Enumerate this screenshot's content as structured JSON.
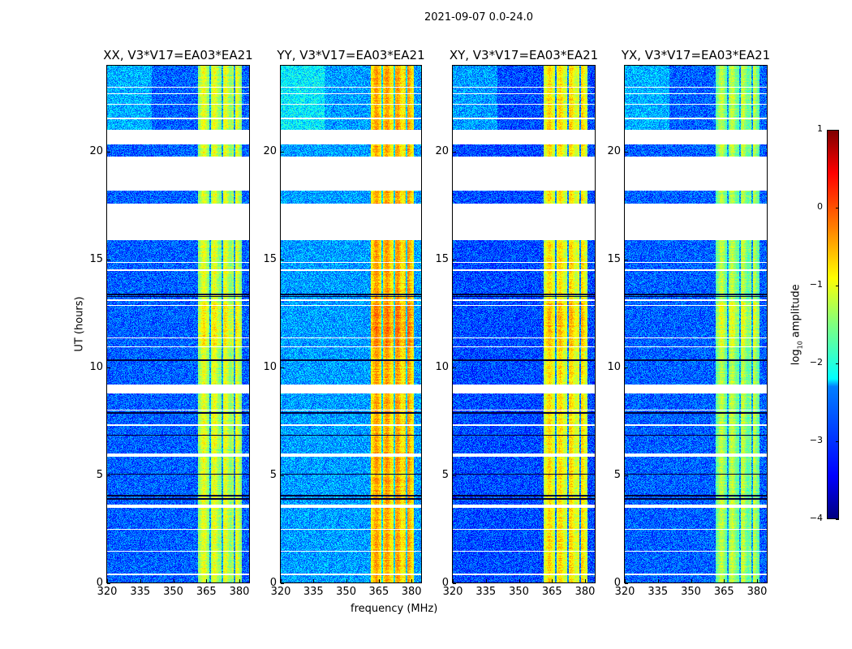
{
  "chart_data": {
    "type": "heatmap",
    "title": "2021-09-07 0.0-24.0",
    "xlabel": "frequency (MHz)",
    "ylabel": "UT (hours)",
    "xlim": [
      320,
      384.4
    ],
    "ylim": [
      0,
      24
    ],
    "xticks": [
      "320",
      "335",
      "350",
      "365",
      "380"
    ],
    "xtick_values": [
      320,
      335,
      350,
      365,
      380
    ],
    "yticks": [
      "0",
      "5",
      "10",
      "15",
      "20"
    ],
    "ytick_values": [
      0,
      5,
      10,
      15,
      20
    ],
    "colorbar": {
      "label": "log",
      "label_sub": "10",
      "label_rest": " amplitude",
      "colormap": "jet",
      "range": [
        -4,
        1
      ],
      "ticks": [
        "1",
        "0",
        "−1",
        "−2",
        "−3",
        "−4"
      ],
      "tick_values": [
        1,
        0,
        -1,
        -2,
        -3,
        -4
      ]
    },
    "band_MHz": [
      361,
      381
    ],
    "band_dark_channels_MHz": [
      366.5,
      372,
      377.5
    ],
    "flagged_gaps_hours": [
      [
        23.0,
        23.05
      ],
      [
        22.7,
        22.75
      ],
      [
        22.2,
        22.25
      ],
      [
        21.55,
        21.6
      ],
      [
        20.35,
        21.05
      ],
      [
        18.2,
        19.8
      ],
      [
        15.9,
        17.6
      ],
      [
        14.85,
        14.9
      ],
      [
        14.5,
        14.55
      ],
      [
        13.1,
        13.15
      ],
      [
        12.85,
        12.9
      ],
      [
        11.35,
        11.4
      ],
      [
        10.95,
        11.0
      ],
      [
        8.8,
        9.2
      ],
      [
        8.0,
        8.05
      ],
      [
        7.3,
        7.35
      ],
      [
        5.85,
        6.0
      ],
      [
        3.5,
        3.65
      ],
      [
        2.45,
        2.5
      ],
      [
        1.45,
        1.5
      ],
      [
        0.35,
        0.42
      ]
    ],
    "dark_lines_hours": [
      13.3,
      13.4,
      10.35,
      7.9,
      6.85,
      5.05,
      4.05,
      3.9
    ],
    "panels": [
      {
        "title": "XX, V3*V17=EA03*EA21",
        "background_log_amp": -2.9,
        "band_log_amp": -1.2
      },
      {
        "title": "YY, V3*V17=EA03*EA21",
        "background_log_amp": -2.6,
        "band_log_amp": -0.6
      },
      {
        "title": "XY, V3*V17=EA03*EA21",
        "background_log_amp": -3.0,
        "band_log_amp": -0.9
      },
      {
        "title": "YX, V3*V17=EA03*EA21",
        "background_log_amp": -2.9,
        "band_log_amp": -1.4
      }
    ]
  }
}
